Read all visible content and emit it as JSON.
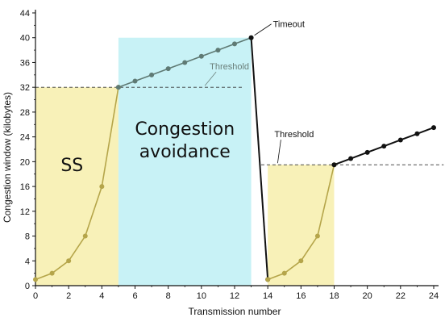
{
  "chart_data": {
    "type": "line",
    "xlabel": "Transmission number",
    "ylabel": "Congestion window (kilobytes)",
    "xlim": [
      0,
      24
    ],
    "ylim": [
      0,
      44
    ],
    "xticks": [
      "0",
      "2",
      "4",
      "6",
      "8",
      "10",
      "12",
      "14",
      "16",
      "18",
      "20",
      "22",
      "24"
    ],
    "yticks": [
      "0",
      "4",
      "8",
      "12",
      "16",
      "20",
      "24",
      "28",
      "32",
      "36",
      "40",
      "44"
    ],
    "grid": false,
    "series": [
      {
        "color": "#b5a54a",
        "points": [
          [
            0,
            1
          ],
          [
            1,
            2
          ],
          [
            2,
            4
          ],
          [
            3,
            8
          ],
          [
            4,
            16
          ],
          [
            5,
            32
          ]
        ]
      },
      {
        "color": "#5f7a74",
        "points": [
          [
            5,
            32
          ],
          [
            6,
            33
          ],
          [
            7,
            34
          ],
          [
            8,
            35
          ],
          [
            9,
            36
          ],
          [
            10,
            37
          ],
          [
            11,
            38
          ],
          [
            12,
            39
          ],
          [
            13,
            40
          ]
        ]
      },
      {
        "color": "#111111",
        "points": [
          [
            13,
            40
          ],
          [
            14,
            1
          ]
        ]
      },
      {
        "color": "#b5a54a",
        "points": [
          [
            14,
            1
          ],
          [
            15,
            2
          ],
          [
            16,
            4
          ],
          [
            17,
            8
          ],
          [
            18,
            19.5
          ]
        ]
      },
      {
        "color": "#111111",
        "points": [
          [
            18,
            19.5
          ],
          [
            19,
            20.5
          ],
          [
            20,
            21.5
          ],
          [
            21,
            22.5
          ],
          [
            22,
            23.5
          ],
          [
            23,
            24.5
          ],
          [
            24,
            25.5
          ]
        ]
      }
    ],
    "regions": [
      {
        "x": [
          0,
          5
        ],
        "y_top": 32,
        "color": "#f8f1b8"
      },
      {
        "x": [
          5,
          13
        ],
        "y_top": 40,
        "color": "#c8f2f6"
      },
      {
        "x": [
          14,
          18
        ],
        "y_top": 19.5,
        "color": "#f8f1b8"
      }
    ],
    "thresholds": [
      {
        "y": 32,
        "x": [
          0,
          12.5
        ],
        "label": "Threshold",
        "label_x": 10.5,
        "color": "#6a7f7a"
      },
      {
        "y": 19.5,
        "x": [
          13.6,
          24.6
        ],
        "label": "Threshold",
        "label_x": 14.4,
        "color": "#111111"
      }
    ],
    "annotations": [
      {
        "text": "Timeout",
        "x": 13,
        "y": 40
      },
      {
        "text": "SS",
        "x": 2.2,
        "y": 18.5
      },
      {
        "text_lines": [
          "Congestion",
          "avoidance"
        ],
        "x": 9,
        "y": 22
      }
    ]
  }
}
